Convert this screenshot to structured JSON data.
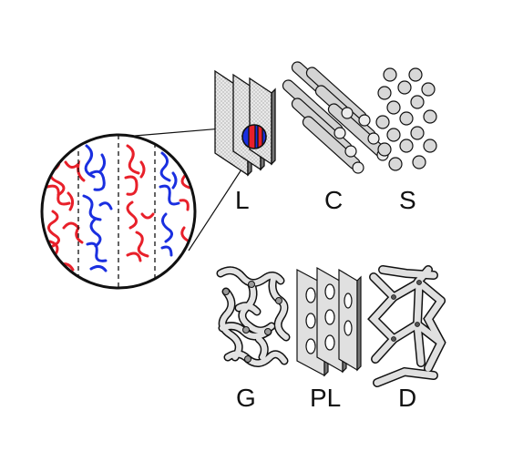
{
  "labels": {
    "lamellar": "L",
    "cylinders": "C",
    "spheres": "S",
    "gyroid": "G",
    "perforated_lamellar": "PL",
    "diamond": "D"
  },
  "colors": {
    "block_a": "#e8202a",
    "block_b": "#1a2fe0",
    "outline": "#111111",
    "panel_fill": "#d9d9d9"
  }
}
